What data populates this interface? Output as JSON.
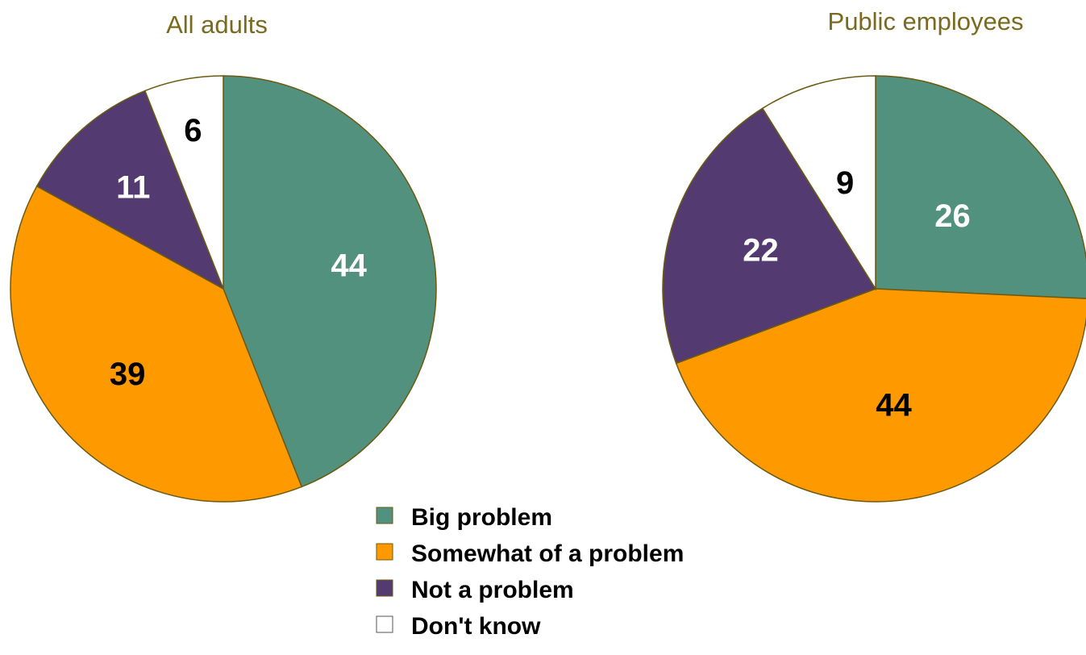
{
  "chart_data": [
    {
      "type": "pie",
      "title": "All adults",
      "categories": [
        "Big problem",
        "Somewhat of a problem",
        "Not a problem",
        "Don't know"
      ],
      "values": [
        44,
        39,
        11,
        6
      ],
      "labels": [
        "44",
        "39",
        "11",
        "6"
      ]
    },
    {
      "type": "pie",
      "title": "Public employees",
      "categories": [
        "Big problem",
        "Somewhat of a problem",
        "Not a problem",
        "Don't know"
      ],
      "values": [
        26,
        44,
        22,
        9
      ],
      "labels": [
        "26",
        "44",
        "22",
        "9"
      ]
    }
  ],
  "legend": {
    "placement": "bottom-center",
    "items": [
      {
        "label": "Big problem",
        "color": "#52917d"
      },
      {
        "label": "Somewhat of a problem",
        "color": "#ff9900"
      },
      {
        "label": "Not a problem",
        "color": "#533a70"
      },
      {
        "label": "Don't know",
        "color": "#ffffff"
      }
    ]
  },
  "colors": {
    "slice_outline": "#6b5a10",
    "title": "#7a6a20",
    "label_on_dark": "#ffffff",
    "label_on_light": "#000000"
  }
}
